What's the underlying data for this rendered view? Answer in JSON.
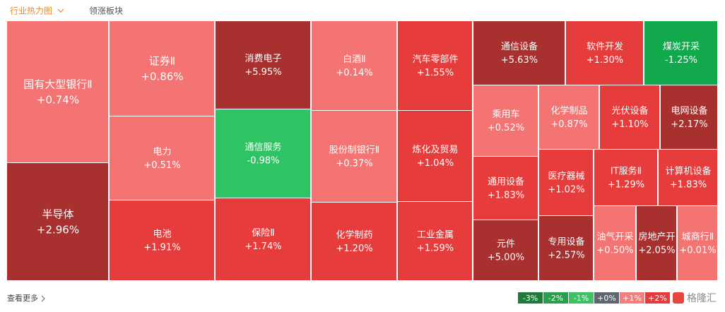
{
  "header": {
    "tabs": [
      "行业热力图",
      "领涨板块"
    ]
  },
  "footer": {
    "more": "查看更多",
    "brand": "格隆汇"
  },
  "chart_data": {
    "type": "treemap",
    "categories": [
      "国有大型银行Ⅱ",
      "半导体",
      "证券Ⅱ",
      "电力",
      "电池",
      "消费电子",
      "通信服务",
      "保险Ⅱ",
      "白酒Ⅱ",
      "股份制银行Ⅱ",
      "化学制药",
      "汽车零部件",
      "炼化及贸易",
      "工业金属",
      "通信设备",
      "软件开发",
      "煤炭开采",
      "乘用车",
      "通用设备",
      "元件",
      "化学制品",
      "光伏设备",
      "电网设备",
      "医疗器械",
      "IT服务Ⅱ",
      "计算机设备",
      "专用设备",
      "油气开采",
      "房地产开",
      "城商行Ⅱ"
    ],
    "values": [
      0.74,
      2.96,
      0.86,
      0.51,
      1.91,
      5.95,
      -0.98,
      1.74,
      0.14,
      0.37,
      1.2,
      1.55,
      1.04,
      1.59,
      5.63,
      1.3,
      -1.25,
      0.52,
      1.83,
      5.0,
      0.87,
      1.1,
      2.17,
      1.02,
      1.29,
      1.83,
      2.57,
      0.5,
      2.05,
      0.01
    ],
    "value_labels": [
      "+0.74%",
      "+2.96%",
      "+0.86%",
      "+0.51%",
      "+1.91%",
      "+5.95%",
      "-0.98%",
      "+1.74%",
      "+0.14%",
      "+0.37%",
      "+1.20%",
      "+1.55%",
      "+1.04%",
      "+1.59%",
      "+5.63%",
      "+1.30%",
      "-1.25%",
      "+0.52%",
      "+1.83%",
      "+5.00%",
      "+0.87%",
      "+1.10%",
      "+2.17%",
      "+1.02%",
      "+1.29%",
      "+1.83%",
      "+2.57%",
      "+0.50%",
      "+2.05%",
      "+0.01%"
    ],
    "legend": [
      {
        "value": -3,
        "label": "-3%",
        "color": "#1c7c3c"
      },
      {
        "value": -2,
        "label": "-2%",
        "color": "#27a04b"
      },
      {
        "value": -1,
        "label": "-1%",
        "color": "#3cc265"
      },
      {
        "value": 0,
        "label": "+0%",
        "color": "#5d6670"
      },
      {
        "value": 1,
        "label": "+1%",
        "color": "#f47d7d"
      },
      {
        "value": 2,
        "label": "+2%",
        "color": "#e83a3a"
      }
    ]
  }
}
